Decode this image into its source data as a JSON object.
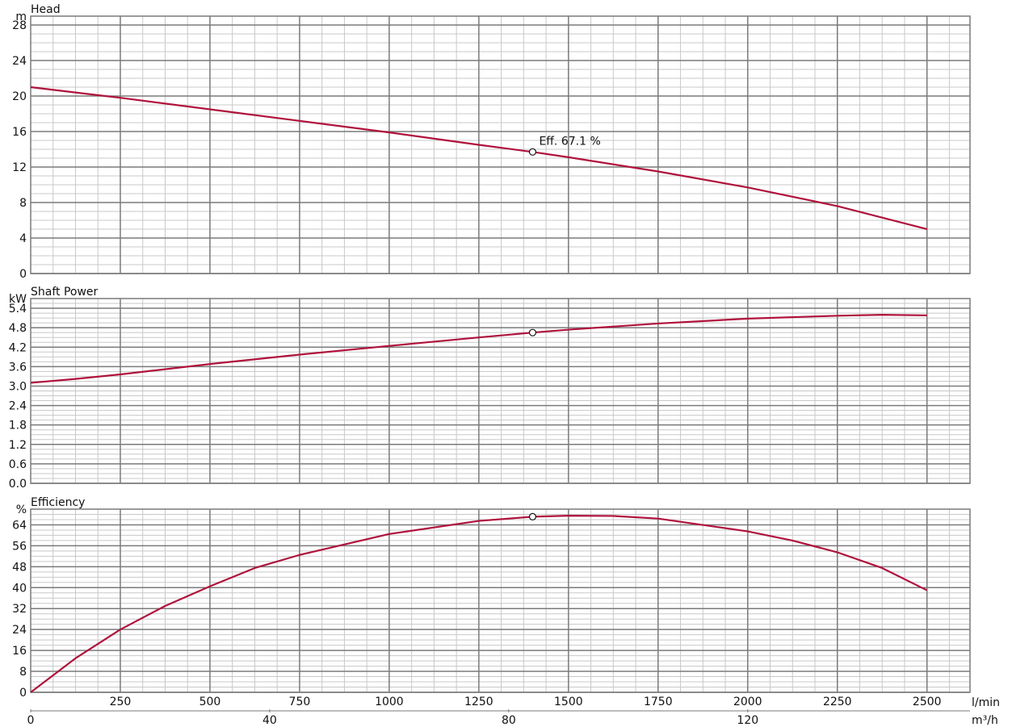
{
  "colors": {
    "curve": "#b0123c",
    "major_grid": "#7a7a7a",
    "minor_grid": "#c8c8c8",
    "text": "#111111"
  },
  "x_axis": {
    "unit_primary": "l/min",
    "unit_secondary": "m³/h",
    "range": [
      0,
      2620
    ],
    "ticks_primary": [
      250,
      500,
      750,
      1000,
      1250,
      1500,
      1750,
      2000,
      2250,
      2500
    ],
    "ticks_secondary": [
      0,
      40,
      80,
      120
    ],
    "secondary_per_primary": 0.06
  },
  "chart_data": [
    {
      "type": "line",
      "title": "Head",
      "ylabel": "m",
      "ylim": [
        0,
        29
      ],
      "yticks": [
        0,
        4,
        8,
        12,
        16,
        20,
        24,
        28
      ],
      "grid": true,
      "x": [
        0,
        250,
        500,
        750,
        1000,
        1250,
        1400,
        1500,
        1750,
        2000,
        2250,
        2500
      ],
      "y": [
        21.0,
        19.8,
        18.5,
        17.2,
        15.9,
        14.5,
        13.7,
        13.1,
        11.5,
        9.7,
        7.6,
        5.0
      ],
      "marker": {
        "x": 1400,
        "y": 13.7,
        "label": "Eff. 67.1 %"
      }
    },
    {
      "type": "line",
      "title": "Shaft Power",
      "ylabel": "kW",
      "ylim": [
        0,
        5.7
      ],
      "yticks": [
        0.0,
        0.6,
        1.2,
        1.8,
        2.4,
        3.0,
        3.6,
        4.2,
        4.8,
        5.4
      ],
      "ytick_labels": [
        "0.0",
        "0.6",
        "1.2",
        "1.8",
        "2.4",
        "3.0",
        "3.6",
        "4.2",
        "4.8",
        "5.4"
      ],
      "grid": true,
      "x": [
        0,
        125,
        250,
        500,
        750,
        1000,
        1250,
        1400,
        1500,
        1750,
        2000,
        2250,
        2375,
        2500
      ],
      "y": [
        3.1,
        3.22,
        3.36,
        3.68,
        3.97,
        4.24,
        4.5,
        4.65,
        4.74,
        4.93,
        5.08,
        5.17,
        5.2,
        5.18
      ],
      "marker": {
        "x": 1400,
        "y": 4.65
      }
    },
    {
      "type": "line",
      "title": "Efficiency",
      "ylabel": "%",
      "ylim": [
        0,
        70
      ],
      "yticks": [
        0,
        8,
        16,
        24,
        32,
        40,
        48,
        56,
        64
      ],
      "grid": true,
      "x": [
        0,
        125,
        250,
        375,
        500,
        625,
        750,
        1000,
        1250,
        1400,
        1500,
        1625,
        1750,
        2000,
        2125,
        2250,
        2375,
        2500
      ],
      "y": [
        0,
        13,
        24,
        33,
        40.5,
        47.5,
        52.5,
        60.5,
        65.5,
        67.1,
        67.5,
        67.4,
        66.4,
        61.5,
        58,
        53.5,
        47.5,
        39
      ],
      "marker": {
        "x": 1400,
        "y": 67.1
      }
    }
  ]
}
